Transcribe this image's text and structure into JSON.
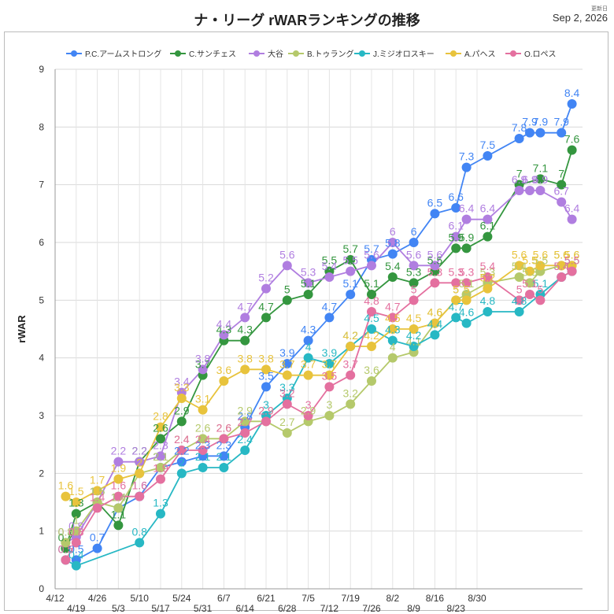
{
  "header": {
    "title": "ナ・リーグ rWARランキングの推移",
    "updated_label": "更新日",
    "updated_date": "Sep 2, 2026"
  },
  "chart_data": {
    "type": "line",
    "title": "ナ・リーグ rWARランキングの推移",
    "ylabel": "rWAR",
    "xlabel": "",
    "ylim": [
      0,
      9
    ],
    "yticks": [
      0,
      1,
      2,
      3,
      4,
      5,
      6,
      7,
      8,
      9
    ],
    "grid": true,
    "legend": "top",
    "x": [
      "4/12",
      "4/19",
      "4/26",
      "5/3",
      "5/10",
      "5/17",
      "5/24",
      "5/31",
      "6/7",
      "6/14",
      "6/21",
      "6/28",
      "7/5",
      "7/12",
      "7/19",
      "7/26",
      "8/2",
      "8/9",
      "8/16",
      "8/23",
      "8/30"
    ],
    "series": [
      {
        "name": "P.C.アームストロング",
        "color": "#4285f4",
        "points": [
          [
            0.5,
            0.5
          ],
          [
            1,
            0.7
          ],
          [
            1.5,
            1.4
          ],
          [
            2,
            1.6
          ],
          [
            2.5,
            2.1
          ],
          [
            3,
            2.2
          ],
          [
            3.5,
            2.3
          ],
          [
            4,
            2.3
          ],
          [
            4.5,
            2.8
          ],
          [
            5,
            3.5
          ],
          [
            5.5,
            3.9
          ],
          [
            6,
            4.3
          ],
          [
            6.5,
            4.7
          ],
          [
            7,
            5.1
          ],
          [
            7.5,
            5.7
          ],
          [
            8,
            5.8
          ],
          [
            8.5,
            6.0
          ],
          [
            9,
            6.5
          ],
          [
            9.5,
            6.6
          ],
          [
            9.75,
            7.3
          ],
          [
            10.25,
            7.5
          ],
          [
            11,
            7.8
          ],
          [
            11.25,
            7.9
          ],
          [
            11.5,
            7.9
          ],
          [
            12,
            7.9
          ],
          [
            12.25,
            8.4
          ]
        ]
      },
      {
        "name": "C.サンチェス",
        "color": "#34963f",
        "points": [
          [
            0.25,
            0.7
          ],
          [
            0.5,
            1.3
          ],
          [
            1,
            1.5
          ],
          [
            1.5,
            1.1
          ],
          [
            2,
            2.2
          ],
          [
            2.5,
            2.6
          ],
          [
            3,
            2.9
          ],
          [
            3.5,
            3.7
          ],
          [
            4,
            4.3
          ],
          [
            4.5,
            4.3
          ],
          [
            5,
            4.7
          ],
          [
            5.5,
            5.0
          ],
          [
            6,
            5.1
          ],
          [
            6.5,
            5.5
          ],
          [
            7,
            5.7
          ],
          [
            7.5,
            5.1
          ],
          [
            8,
            5.4
          ],
          [
            8.5,
            5.3
          ],
          [
            9,
            5.5
          ],
          [
            9.5,
            5.9
          ],
          [
            9.75,
            5.9
          ],
          [
            10.25,
            6.1
          ],
          [
            11,
            7.0
          ],
          [
            11.5,
            7.1
          ],
          [
            12,
            7.0
          ],
          [
            12.25,
            7.6
          ]
        ]
      },
      {
        "name": "大谷",
        "color": "#b07ee0",
        "points": [
          [
            0.25,
            0.8
          ],
          [
            0.5,
            0.9
          ],
          [
            1,
            1.5
          ],
          [
            1.5,
            2.2
          ],
          [
            2,
            2.2
          ],
          [
            2.5,
            2.3
          ],
          [
            3,
            3.4
          ],
          [
            3.5,
            3.8
          ],
          [
            4,
            4.4
          ],
          [
            4.5,
            4.7
          ],
          [
            5,
            5.2
          ],
          [
            5.5,
            5.6
          ],
          [
            6,
            5.3
          ],
          [
            6.5,
            5.4
          ],
          [
            7,
            5.5
          ],
          [
            7.5,
            5.6
          ],
          [
            8,
            6.0
          ],
          [
            8.5,
            5.6
          ],
          [
            9,
            5.6
          ],
          [
            9.5,
            6.1
          ],
          [
            9.75,
            6.4
          ],
          [
            10.25,
            6.4
          ],
          [
            11,
            6.9
          ],
          [
            11.25,
            6.9
          ],
          [
            11.5,
            6.9
          ],
          [
            12,
            6.7
          ],
          [
            12.25,
            6.4
          ]
        ]
      },
      {
        "name": "B.トゥラング",
        "color": "#b5c96b",
        "points": [
          [
            0.25,
            0.8
          ],
          [
            0.5,
            1.0
          ],
          [
            1,
            1.5
          ],
          [
            1.5,
            1.4
          ],
          [
            2,
            2.0
          ],
          [
            2.5,
            2.1
          ],
          [
            3,
            2.4
          ],
          [
            3.5,
            2.6
          ],
          [
            4,
            2.6
          ],
          [
            4.5,
            2.9
          ],
          [
            5,
            2.9
          ],
          [
            5.5,
            2.7
          ],
          [
            6,
            2.9
          ],
          [
            6.5,
            3.0
          ],
          [
            7,
            3.2
          ],
          [
            7.5,
            3.6
          ],
          [
            8,
            4.0
          ],
          [
            8.5,
            4.1
          ],
          [
            9,
            4.6
          ],
          [
            9.5,
            5.0
          ],
          [
            9.75,
            5.1
          ],
          [
            10.25,
            5.3
          ],
          [
            11,
            5.4
          ],
          [
            11.25,
            5.3
          ],
          [
            11.5,
            5.5
          ],
          [
            12,
            5.6
          ],
          [
            12.25,
            5.6
          ]
        ]
      },
      {
        "name": "J.ミジオロスキー",
        "color": "#27b8c4",
        "points": [
          [
            0.25,
            0.5
          ],
          [
            0.5,
            0.4
          ],
          [
            2,
            0.8
          ],
          [
            2.5,
            1.3
          ],
          [
            3,
            2.0
          ],
          [
            3.5,
            2.1
          ],
          [
            4,
            2.1
          ],
          [
            4.5,
            2.4
          ],
          [
            5,
            3.0
          ],
          [
            5.5,
            3.3
          ],
          [
            6,
            4.0
          ],
          [
            6.5,
            3.9
          ],
          [
            7,
            4.2
          ],
          [
            7.5,
            4.5
          ],
          [
            8,
            4.3
          ],
          [
            8.5,
            4.2
          ],
          [
            9,
            4.4
          ],
          [
            9.5,
            4.7
          ],
          [
            9.75,
            4.6
          ],
          [
            10.25,
            4.8
          ],
          [
            11,
            4.8
          ],
          [
            11.5,
            5.1
          ],
          [
            12,
            5.4
          ],
          [
            12.25,
            5.5
          ]
        ]
      },
      {
        "name": "A.パヘス",
        "color": "#e8c33c",
        "points": [
          [
            0.25,
            1.6
          ],
          [
            0.5,
            1.5
          ],
          [
            1,
            1.7
          ],
          [
            1.5,
            1.9
          ],
          [
            2,
            2.0
          ],
          [
            2.5,
            2.8
          ],
          [
            3,
            3.3
          ],
          [
            3.5,
            3.1
          ],
          [
            4,
            3.6
          ],
          [
            4.5,
            3.8
          ],
          [
            5,
            3.8
          ],
          [
            5.5,
            3.7
          ],
          [
            6,
            3.7
          ],
          [
            6.5,
            3.7
          ],
          [
            7,
            4.2
          ],
          [
            7.5,
            4.2
          ],
          [
            8,
            4.5
          ],
          [
            8.5,
            4.5
          ],
          [
            9,
            4.6
          ],
          [
            9.5,
            5.0
          ],
          [
            9.75,
            5.0
          ],
          [
            10.25,
            5.2
          ],
          [
            11,
            5.6
          ],
          [
            11.25,
            5.5
          ],
          [
            11.5,
            5.6
          ],
          [
            12,
            5.6
          ],
          [
            12.25,
            5.6
          ]
        ]
      },
      {
        "name": "O.ロペス",
        "color": "#e4709f",
        "points": [
          [
            0.25,
            0.5
          ],
          [
            0.5,
            0.8
          ],
          [
            1,
            1.4
          ],
          [
            1.5,
            1.6
          ],
          [
            2,
            1.6
          ],
          [
            2.5,
            1.9
          ],
          [
            3,
            2.4
          ],
          [
            3.5,
            2.4
          ],
          [
            4,
            2.6
          ],
          [
            4.5,
            2.7
          ],
          [
            5,
            2.9
          ],
          [
            5.5,
            3.2
          ],
          [
            6,
            3.0
          ],
          [
            6.5,
            3.5
          ],
          [
            7,
            3.7
          ],
          [
            7.5,
            4.8
          ],
          [
            8,
            4.7
          ],
          [
            8.5,
            5.0
          ],
          [
            9,
            5.3
          ],
          [
            9.5,
            5.3
          ],
          [
            9.75,
            5.3
          ],
          [
            10.25,
            5.4
          ],
          [
            11,
            5.0
          ],
          [
            11.25,
            5.1
          ],
          [
            11.5,
            5.0
          ],
          [
            12,
            5.4
          ],
          [
            12.25,
            5.5
          ]
        ]
      }
    ]
  }
}
